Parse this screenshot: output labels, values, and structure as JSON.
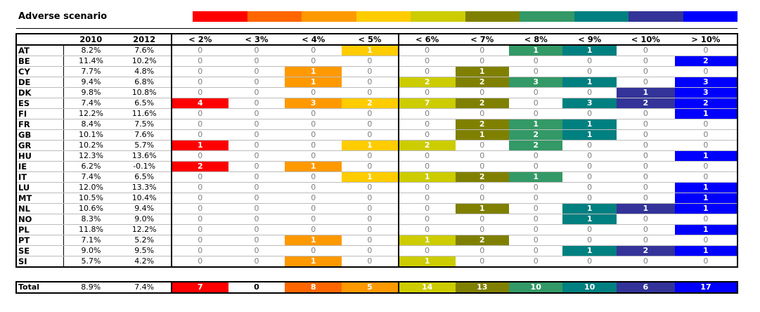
{
  "title": "Adverse scenario",
  "legend_colors": [
    "#ff0000",
    "#ff6600",
    "#ff9900",
    "#ffcc00",
    "#cccc00",
    "#808000",
    "#339966",
    "#008080",
    "#333399",
    "#0000ff"
  ],
  "headers": {
    "country": "",
    "y2010": "2010",
    "y2012": "2012",
    "bins": [
      "< 2%",
      "< 3%",
      "< 4%",
      "< 5%",
      "< 6%",
      "< 7%",
      "< 8%",
      "< 9%",
      "< 10%",
      "> 10%"
    ]
  },
  "rows": [
    {
      "country": "AT",
      "y2010": "8.2%",
      "y2012": "7.6%",
      "bins": [
        "0",
        "0",
        "0",
        "1",
        "0",
        "0",
        "1",
        "1",
        "0",
        "0"
      ]
    },
    {
      "country": "BE",
      "y2010": "11.4%",
      "y2012": "10.2%",
      "bins": [
        "0",
        "0",
        "0",
        "0",
        "0",
        "0",
        "0",
        "0",
        "0",
        "2"
      ]
    },
    {
      "country": "CY",
      "y2010": "7.7%",
      "y2012": "4.8%",
      "bins": [
        "0",
        "0",
        "1",
        "0",
        "0",
        "1",
        "0",
        "0",
        "0",
        "0"
      ]
    },
    {
      "country": "DE",
      "y2010": "9.4%",
      "y2012": "6.8%",
      "bins": [
        "0",
        "0",
        "1",
        "0",
        "2",
        "2",
        "3",
        "1",
        "0",
        "3"
      ]
    },
    {
      "country": "DK",
      "y2010": "9.8%",
      "y2012": "10.8%",
      "bins": [
        "0",
        "0",
        "0",
        "0",
        "0",
        "0",
        "0",
        "0",
        "1",
        "3"
      ]
    },
    {
      "country": "ES",
      "y2010": "7.4%",
      "y2012": "6.5%",
      "bins": [
        "4",
        "0",
        "3",
        "2",
        "7",
        "2",
        "0",
        "3",
        "2",
        "2"
      ]
    },
    {
      "country": "FI",
      "y2010": "12.2%",
      "y2012": "11.6%",
      "bins": [
        "0",
        "0",
        "0",
        "0",
        "0",
        "0",
        "0",
        "0",
        "0",
        "1"
      ]
    },
    {
      "country": "FR",
      "y2010": "8.4%",
      "y2012": "7.5%",
      "bins": [
        "0",
        "0",
        "0",
        "0",
        "0",
        "2",
        "1",
        "1",
        "0",
        "0"
      ]
    },
    {
      "country": "GB",
      "y2010": "10.1%",
      "y2012": "7.6%",
      "bins": [
        "0",
        "0",
        "0",
        "0",
        "0",
        "1",
        "2",
        "1",
        "0",
        "0"
      ]
    },
    {
      "country": "GR",
      "y2010": "10.2%",
      "y2012": "5.7%",
      "bins": [
        "1",
        "0",
        "0",
        "1",
        "2",
        "0",
        "2",
        "0",
        "0",
        "0"
      ]
    },
    {
      "country": "HU",
      "y2010": "12.3%",
      "y2012": "13.6%",
      "bins": [
        "0",
        "0",
        "0",
        "0",
        "0",
        "0",
        "0",
        "0",
        "0",
        "1"
      ]
    },
    {
      "country": "IE",
      "y2010": "6.2%",
      "y2012": "-0.1%",
      "bins": [
        "2",
        "0",
        "1",
        "0",
        "0",
        "0",
        "0",
        "0",
        "0",
        "0"
      ]
    },
    {
      "country": "IT",
      "y2010": "7.4%",
      "y2012": "6.5%",
      "bins": [
        "0",
        "0",
        "0",
        "1",
        "1",
        "2",
        "1",
        "0",
        "0",
        "0"
      ]
    },
    {
      "country": "LU",
      "y2010": "12.0%",
      "y2012": "13.3%",
      "bins": [
        "0",
        "0",
        "0",
        "0",
        "0",
        "0",
        "0",
        "0",
        "0",
        "1"
      ]
    },
    {
      "country": "MT",
      "y2010": "10.5%",
      "y2012": "10.4%",
      "bins": [
        "0",
        "0",
        "0",
        "0",
        "0",
        "0",
        "0",
        "0",
        "0",
        "1"
      ]
    },
    {
      "country": "NL",
      "y2010": "10.6%",
      "y2012": "9.4%",
      "bins": [
        "0",
        "0",
        "0",
        "0",
        "0",
        "1",
        "0",
        "1",
        "1",
        "1"
      ]
    },
    {
      "country": "NO",
      "y2010": "8.3%",
      "y2012": "9.0%",
      "bins": [
        "0",
        "0",
        "0",
        "0",
        "0",
        "0",
        "0",
        "1",
        "0",
        "0"
      ]
    },
    {
      "country": "PL",
      "y2010": "11.8%",
      "y2012": "12.2%",
      "bins": [
        "0",
        "0",
        "0",
        "0",
        "0",
        "0",
        "0",
        "0",
        "0",
        "1"
      ]
    },
    {
      "country": "PT",
      "y2010": "7.1%",
      "y2012": "5.2%",
      "bins": [
        "0",
        "0",
        "1",
        "0",
        "1",
        "2",
        "0",
        "0",
        "0",
        "0"
      ]
    },
    {
      "country": "SE",
      "y2010": "9.0%",
      "y2012": "9.5%",
      "bins": [
        "0",
        "0",
        "0",
        "0",
        "0",
        "0",
        "0",
        "1",
        "2",
        "1"
      ]
    },
    {
      "country": "SI",
      "y2010": "5.7%",
      "y2012": "4.2%",
      "bins": [
        "0",
        "0",
        "1",
        "0",
        "1",
        "0",
        "0",
        "0",
        "0",
        "0"
      ]
    }
  ],
  "total": {
    "label": "Total",
    "y2010": "8.9%",
    "y2012": "7.4%",
    "bins": [
      "7",
      "0",
      "8",
      "5",
      "14",
      "13",
      "10",
      "10",
      "6",
      "17"
    ],
    "bin_colors": [
      "#ff0000",
      "#ffffff",
      "#ff6600",
      "#ff9900",
      "#cccc00",
      "#808000",
      "#339966",
      "#008080",
      "#333399",
      "#0000ff"
    ]
  }
}
